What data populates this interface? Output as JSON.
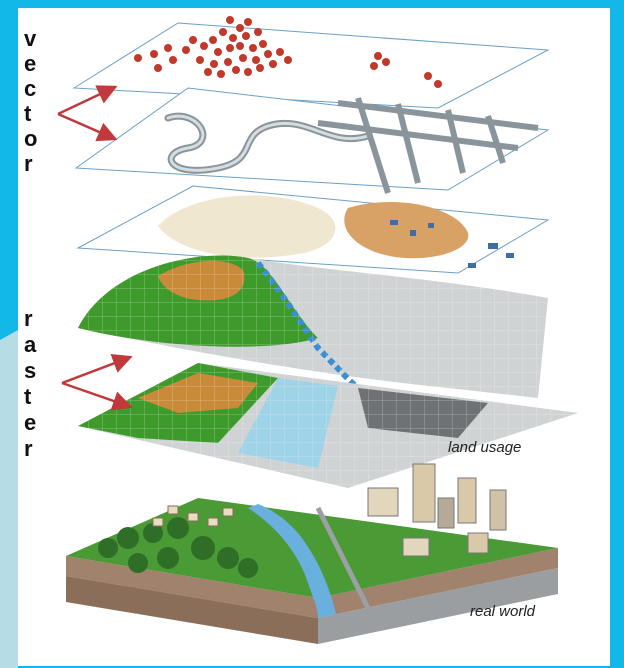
{
  "labels": {
    "vector_letters": [
      "v",
      "e",
      "c",
      "t",
      "o",
      "r"
    ],
    "raster_letters": [
      "r",
      "a",
      "s",
      "t",
      "e",
      "r"
    ],
    "land_usage": "land usage",
    "real_world": "real world"
  },
  "colors": {
    "background": "#12b8e8",
    "wedge": "#b6dce6",
    "arrow": "#c0393b",
    "points": "#c0392b",
    "road": "#8a959b",
    "water": "#3a8fd0",
    "grass": "#3f9a2c",
    "soil": "#c98a3a"
  }
}
